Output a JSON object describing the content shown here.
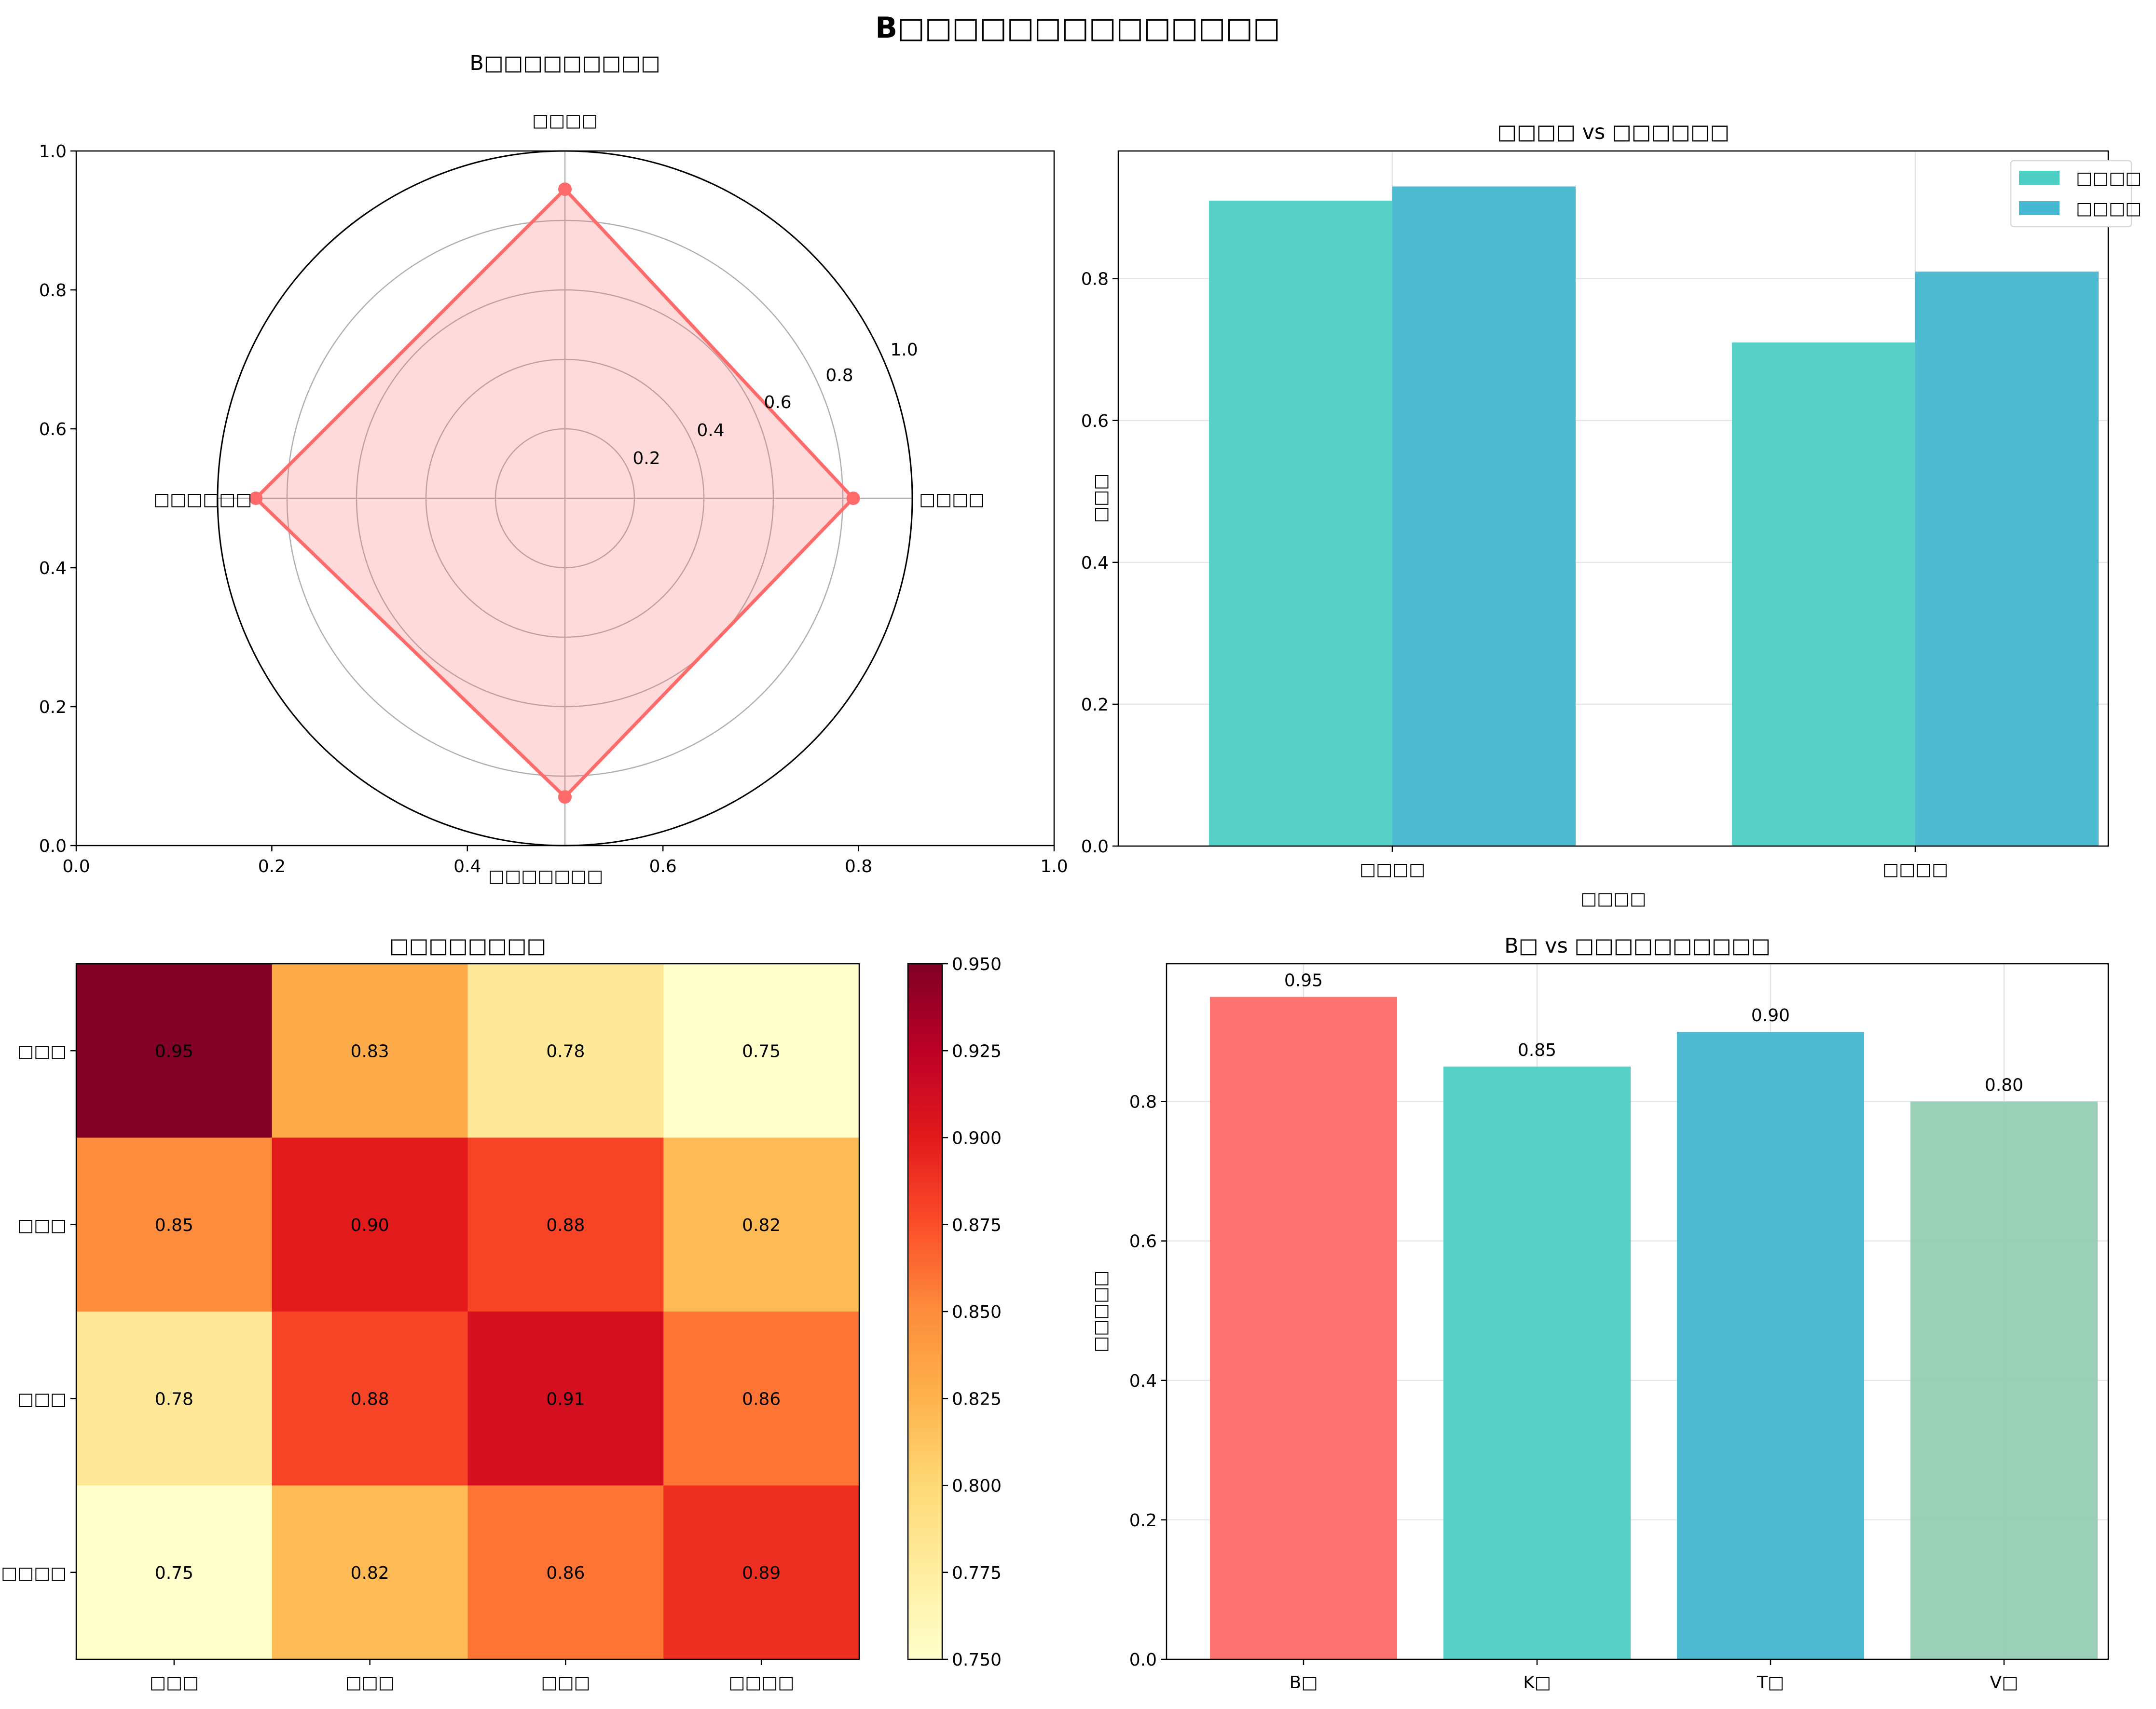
{
  "suptitle": "B□□□□□□□□□□□□□□",
  "chart_data": [
    {
      "type": "radar",
      "title": "B□□□□□□□□□",
      "axes_labels": [
        "□□□□",
        "□□□□",
        "□□□□□□□",
        "□□□□□□"
      ],
      "axes_angles_deg": [
        90,
        0,
        270,
        180
      ],
      "values": [
        0.89,
        0.83,
        0.86,
        0.89
      ],
      "rlim": [
        0,
        1.0
      ],
      "rticks": [
        "0.2",
        "0.4",
        "0.6",
        "0.8",
        "1.0"
      ],
      "frame_xticks": [
        "0.0",
        "0.2",
        "0.4",
        "0.6",
        "0.8",
        "1.0"
      ],
      "frame_yticks": [
        "0.0",
        "0.2",
        "0.4",
        "0.6",
        "0.8",
        "1.0"
      ],
      "color": "#ff6b6b"
    },
    {
      "type": "bar",
      "title": "□□□□ vs □□□□□□",
      "xlabel": "□□□□",
      "ylabel": "□□□",
      "categories": [
        "□□□□",
        "□□□□"
      ],
      "series": [
        {
          "name": "□□□□",
          "values": [
            0.91,
            0.71
          ],
          "color": "#4ecdc4"
        },
        {
          "name": "□□□□",
          "values": [
            0.93,
            0.81
          ],
          "color": "#45b7d1"
        }
      ],
      "ylim": [
        0,
        0.98
      ],
      "yticks": [
        "0.0",
        "0.2",
        "0.4",
        "0.6",
        "0.8"
      ],
      "grid": true,
      "legend": "top-right"
    },
    {
      "type": "heatmap",
      "title": "□□□□□□□□",
      "rows": [
        "□□□",
        "□□□",
        "□□□",
        "□□□□"
      ],
      "cols": [
        "□□□",
        "□□□",
        "□□□",
        "□□□□"
      ],
      "values": [
        [
          0.95,
          0.83,
          0.78,
          0.75
        ],
        [
          0.85,
          0.9,
          0.88,
          0.82
        ],
        [
          0.78,
          0.88,
          0.91,
          0.86
        ],
        [
          0.75,
          0.82,
          0.86,
          0.89
        ]
      ],
      "labels": [
        [
          "0.95",
          "0.83",
          "0.78",
          "0.75"
        ],
        [
          "0.85",
          "0.90",
          "0.88",
          "0.82"
        ],
        [
          "0.78",
          "0.88",
          "0.91",
          "0.86"
        ],
        [
          "0.75",
          "0.82",
          "0.86",
          "0.89"
        ]
      ],
      "colormap": "YlOrRd",
      "vmin": 0.75,
      "vmax": 0.95,
      "colorbar_ticks": [
        "0.750",
        "0.775",
        "0.800",
        "0.825",
        "0.850",
        "0.875",
        "0.900",
        "0.925",
        "0.950"
      ]
    },
    {
      "type": "bar",
      "title": "B□ vs □□□□□□□□□□",
      "xlabel": "",
      "ylabel": "□□□□□",
      "categories": [
        "B□",
        "K□",
        "T□",
        "V□"
      ],
      "values": [
        0.95,
        0.85,
        0.9,
        0.8
      ],
      "value_labels": [
        "0.95",
        "0.85",
        "0.90",
        "0.80"
      ],
      "colors": [
        "#ff6b6b",
        "#4ecdc4",
        "#45b7d1",
        "#96ceb4"
      ],
      "ylim": [
        0,
        0.9975
      ],
      "yticks": [
        "0.0",
        "0.2",
        "0.4",
        "0.6",
        "0.8"
      ],
      "grid": true
    }
  ]
}
